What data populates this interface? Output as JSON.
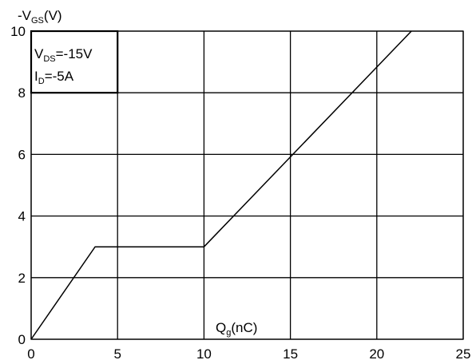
{
  "chart_data": {
    "type": "line",
    "ylabel_prefix": "-V",
    "ylabel_sub": "GS",
    "ylabel_suffix": "(V)",
    "xlabel_prefix": "Q",
    "xlabel_sub": "g",
    "xlabel_suffix": "(nC)",
    "xlim": [
      0,
      25
    ],
    "ylim": [
      0,
      10
    ],
    "x_ticks": [
      "0",
      "5",
      "10",
      "15",
      "20",
      "25"
    ],
    "y_ticks": [
      "0",
      "2",
      "4",
      "6",
      "8",
      "10"
    ],
    "grid": true,
    "annotation": {
      "line1_prefix": "V",
      "line1_sub": "DS",
      "line1_suffix": "=-15V",
      "line2_prefix": "I",
      "line2_sub": "D",
      "line2_suffix": "=-5A"
    },
    "series": [
      {
        "x": [
          0,
          3.7,
          10,
          22
        ],
        "y": [
          0,
          3,
          3,
          10
        ]
      }
    ]
  }
}
